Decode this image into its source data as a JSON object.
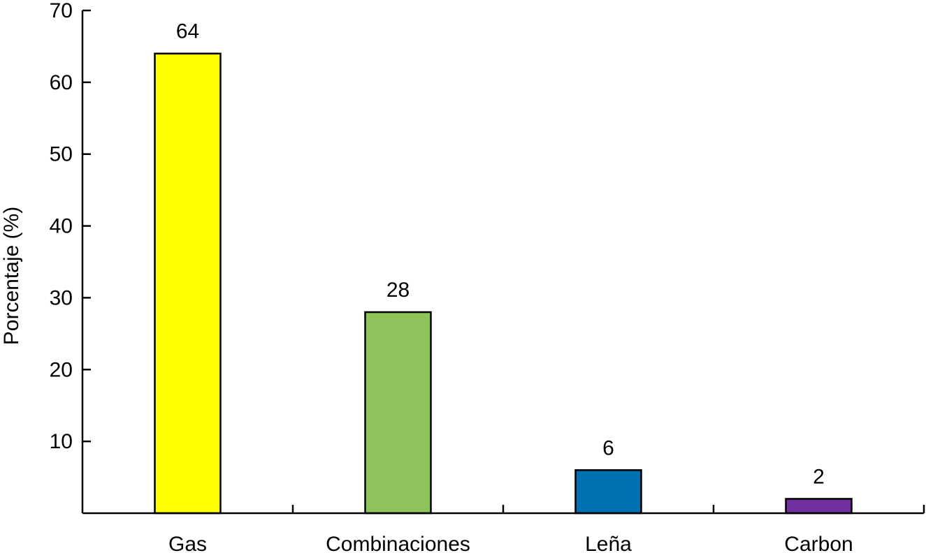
{
  "chart_data": {
    "type": "bar",
    "categories": [
      "Gas",
      "Combinaciones",
      "Leña",
      "Carbon"
    ],
    "values": [
      64,
      28,
      6,
      2
    ],
    "data_labels": [
      "64",
      "28",
      "6",
      "2"
    ],
    "colors": [
      "#ffff00",
      "#8ec45b",
      "#0070b0",
      "#7030a0"
    ],
    "title": "",
    "xlabel": "",
    "ylabel": "Porcentaje (%)",
    "ylim": [
      0,
      70
    ],
    "yticks": [
      10,
      20,
      30,
      40,
      50,
      60,
      70
    ],
    "ytick_labels": [
      "10",
      "20",
      "30",
      "40",
      "50",
      "60",
      "70"
    ],
    "grid": false,
    "legend": "none"
  }
}
